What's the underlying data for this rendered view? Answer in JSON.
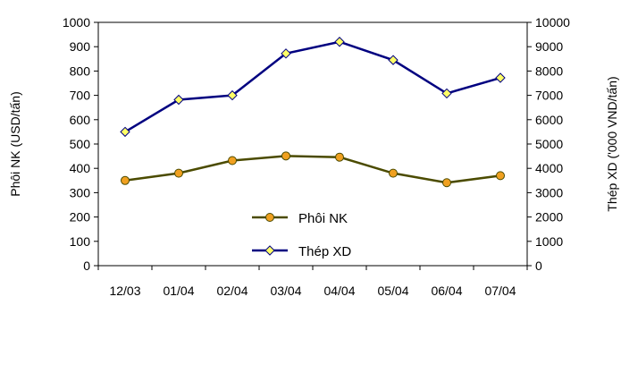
{
  "chart_data": {
    "type": "line",
    "categories": [
      "12/03",
      "01/04",
      "02/04",
      "03/04",
      "04/04",
      "05/04",
      "06/04",
      "07/04"
    ],
    "series": [
      {
        "name": "Phôi NK",
        "axis": "left",
        "values": [
          350,
          380,
          432,
          451,
          446,
          380,
          341,
          370
        ],
        "color": "#4b4b00",
        "marker": "circle",
        "marker_color": "#f0a020"
      },
      {
        "name": "Thép XD",
        "axis": "right",
        "values": [
          5500,
          6820,
          7000,
          8720,
          9200,
          8450,
          7080,
          7720
        ],
        "color": "#000080",
        "marker": "diamond",
        "marker_color": "#ffff66"
      }
    ],
    "ylabel_left": "Phôi NK (USD/tấn)",
    "ylabel_right": "Thép XD ('000 VND/tấn)",
    "ylim_left": [
      0,
      1000
    ],
    "ylim_right": [
      0,
      10000
    ],
    "yticks_left": [
      "0",
      "100",
      "200",
      "300",
      "400",
      "500",
      "600",
      "700",
      "800",
      "900",
      "1000"
    ],
    "yticks_right": [
      "0",
      "1000",
      "2000",
      "3000",
      "4000",
      "5000",
      "6000",
      "7000",
      "8000",
      "9000",
      "10000"
    ],
    "grid": false,
    "legend_position": "lower-center-inside"
  }
}
